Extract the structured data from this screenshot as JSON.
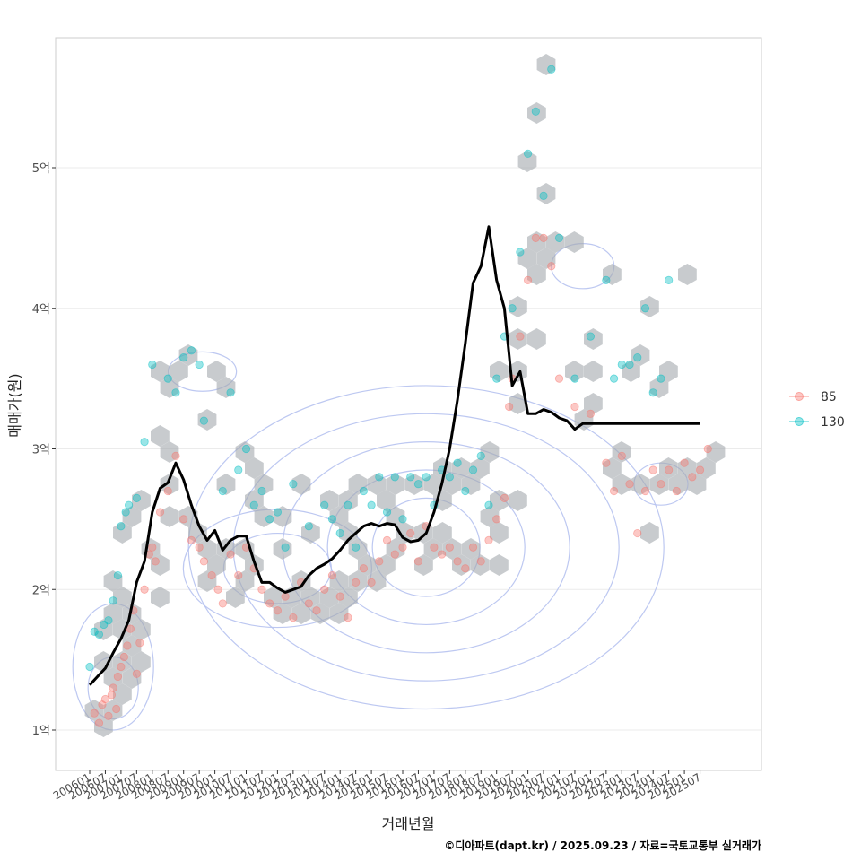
{
  "chart_data": {
    "type": "scatter",
    "xlabel": "거래년월",
    "ylabel": "매매가(원)",
    "caption": "©디아파트(dapt.kr) / 2025.09.23 / 자료=국토교통부 실거래가",
    "x_ticks": [
      "200601",
      "200607",
      "200701",
      "200707",
      "200801",
      "200807",
      "200901",
      "200907",
      "201001",
      "201007",
      "201101",
      "201107",
      "201201",
      "201207",
      "201301",
      "201307",
      "201401",
      "201407",
      "201501",
      "201507",
      "201601",
      "201607",
      "201701",
      "201707",
      "201801",
      "201807",
      "201901",
      "201907",
      "202001",
      "202007",
      "202101",
      "202107",
      "202201",
      "202207",
      "202301",
      "202307",
      "202401",
      "202407",
      "202501",
      "202507"
    ],
    "y_ticks": [
      {
        "label": "1억",
        "value": 1
      },
      {
        "label": "2억",
        "value": 2
      },
      {
        "label": "3억",
        "value": 3
      },
      {
        "label": "4억",
        "value": 4
      },
      {
        "label": "5억",
        "value": 5
      }
    ],
    "ylim": [
      0.7,
      5.9
    ],
    "xlim": [
      -0.4,
      40.5
    ],
    "grid": true,
    "legend_position": "right",
    "legend": [
      {
        "name": "85",
        "color": "#F8766D"
      },
      {
        "name": "130",
        "color": "#00BFC4"
      }
    ],
    "trend_line": {
      "name": "moving average",
      "color": "#000000",
      "x": [
        0,
        0.5,
        1,
        1.5,
        2,
        2.5,
        3,
        3.5,
        4,
        4.5,
        5,
        5.5,
        6,
        6.5,
        7,
        7.5,
        8,
        8.5,
        9,
        9.5,
        10,
        10.5,
        11,
        11.5,
        12,
        12.5,
        13,
        13.5,
        14,
        14.5,
        15,
        15.5,
        16,
        16.5,
        17,
        17.5,
        18,
        18.5,
        19,
        19.5,
        20,
        20.5,
        21,
        21.5,
        22,
        22.5,
        23,
        23.5,
        24,
        24.5,
        25,
        25.5,
        26,
        26.5,
        27,
        27.5,
        28,
        28.5,
        29,
        29.5,
        30,
        30.5,
        31,
        31.5,
        32,
        32.5,
        33,
        33.5,
        34,
        34.5,
        35,
        35.5,
        36,
        36.5,
        37,
        37.5,
        38,
        38.5,
        39,
        39.5,
        40
      ],
      "y": [
        1.32,
        1.38,
        1.44,
        1.55,
        1.65,
        1.78,
        2.05,
        2.2,
        2.55,
        2.72,
        2.76,
        2.9,
        2.78,
        2.6,
        2.45,
        2.35,
        2.42,
        2.28,
        2.35,
        2.38,
        2.38,
        2.2,
        2.05,
        2.05,
        2.01,
        1.98,
        2.0,
        2.02,
        2.1,
        2.15,
        2.18,
        2.22,
        2.28,
        2.35,
        2.4,
        2.45,
        2.47,
        2.45,
        2.47,
        2.46,
        2.37,
        2.34,
        2.35,
        2.4,
        2.55,
        2.75,
        3.0,
        3.35,
        3.75,
        4.18,
        4.3,
        4.58,
        4.2,
        4.0,
        3.45,
        3.55,
        3.25,
        3.25,
        3.28,
        3.26,
        3.22,
        3.2,
        3.14,
        3.18,
        3.18,
        3.18,
        3.18,
        3.18,
        3.18,
        3.18,
        3.18,
        3.18,
        3.18,
        3.18,
        3.18,
        3.18,
        3.18,
        3.18,
        3.18,
        3.18,
        3.18
      ]
    },
    "series": [
      {
        "name": "85",
        "points": [
          [
            0.3,
            1.12
          ],
          [
            0.6,
            1.05
          ],
          [
            0.8,
            1.18
          ],
          [
            1.0,
            1.22
          ],
          [
            1.2,
            1.1
          ],
          [
            1.4,
            1.25
          ],
          [
            1.5,
            1.3
          ],
          [
            1.7,
            1.15
          ],
          [
            1.8,
            1.38
          ],
          [
            2.0,
            1.45
          ],
          [
            2.2,
            1.52
          ],
          [
            2.4,
            1.6
          ],
          [
            2.6,
            1.72
          ],
          [
            2.8,
            1.85
          ],
          [
            3.0,
            1.4
          ],
          [
            3.2,
            1.62
          ],
          [
            3.5,
            2.0
          ],
          [
            3.8,
            2.25
          ],
          [
            4.0,
            2.3
          ],
          [
            4.2,
            2.2
          ],
          [
            4.5,
            2.55
          ],
          [
            5.0,
            2.7
          ],
          [
            5.5,
            2.95
          ],
          [
            6.0,
            2.5
          ],
          [
            6.5,
            2.35
          ],
          [
            7.0,
            2.3
          ],
          [
            7.3,
            2.2
          ],
          [
            7.8,
            2.1
          ],
          [
            8.2,
            2.0
          ],
          [
            8.5,
            1.9
          ],
          [
            9.0,
            2.25
          ],
          [
            9.5,
            2.1
          ],
          [
            10.0,
            2.3
          ],
          [
            10.5,
            2.15
          ],
          [
            11.0,
            2.0
          ],
          [
            11.5,
            1.9
          ],
          [
            12.0,
            1.85
          ],
          [
            12.5,
            1.95
          ],
          [
            13.0,
            1.8
          ],
          [
            13.5,
            2.05
          ],
          [
            14.0,
            1.9
          ],
          [
            14.5,
            1.85
          ],
          [
            15.0,
            2.0
          ],
          [
            15.5,
            2.1
          ],
          [
            16.0,
            1.95
          ],
          [
            16.5,
            1.8
          ],
          [
            17.0,
            2.05
          ],
          [
            17.5,
            2.15
          ],
          [
            18.0,
            2.05
          ],
          [
            18.5,
            2.2
          ],
          [
            19.0,
            2.35
          ],
          [
            19.5,
            2.25
          ],
          [
            20.0,
            2.3
          ],
          [
            20.5,
            2.4
          ],
          [
            21.0,
            2.2
          ],
          [
            21.5,
            2.45
          ],
          [
            22.0,
            2.3
          ],
          [
            22.5,
            2.25
          ],
          [
            23.0,
            2.3
          ],
          [
            23.5,
            2.2
          ],
          [
            24.0,
            2.15
          ],
          [
            24.5,
            2.3
          ],
          [
            25.0,
            2.2
          ],
          [
            25.5,
            2.35
          ],
          [
            26.0,
            2.5
          ],
          [
            26.5,
            2.65
          ],
          [
            26.8,
            3.3
          ],
          [
            27.0,
            3.5
          ],
          [
            27.5,
            3.8
          ],
          [
            28.0,
            4.2
          ],
          [
            28.5,
            4.5
          ],
          [
            29.0,
            4.5
          ],
          [
            29.5,
            4.3
          ],
          [
            30.0,
            3.5
          ],
          [
            31.0,
            3.3
          ],
          [
            32.0,
            3.25
          ],
          [
            33.0,
            2.9
          ],
          [
            33.5,
            2.7
          ],
          [
            34.0,
            2.95
          ],
          [
            34.5,
            2.75
          ],
          [
            35.0,
            2.4
          ],
          [
            35.5,
            2.7
          ],
          [
            36.0,
            2.85
          ],
          [
            36.5,
            2.75
          ],
          [
            37.0,
            2.85
          ],
          [
            37.5,
            2.7
          ],
          [
            38.0,
            2.9
          ],
          [
            38.5,
            2.8
          ],
          [
            39.0,
            2.85
          ],
          [
            39.5,
            3.0
          ]
        ]
      },
      {
        "name": "130",
        "points": [
          [
            0.0,
            1.45
          ],
          [
            0.3,
            1.7
          ],
          [
            0.6,
            1.68
          ],
          [
            0.9,
            1.75
          ],
          [
            1.2,
            1.78
          ],
          [
            1.5,
            1.92
          ],
          [
            1.8,
            2.1
          ],
          [
            2.0,
            2.45
          ],
          [
            2.3,
            2.55
          ],
          [
            2.5,
            2.6
          ],
          [
            3.0,
            2.65
          ],
          [
            3.5,
            3.05
          ],
          [
            4.0,
            3.6
          ],
          [
            5.0,
            3.5
          ],
          [
            5.5,
            3.4
          ],
          [
            6.0,
            3.65
          ],
          [
            6.5,
            3.7
          ],
          [
            7.0,
            3.6
          ],
          [
            7.3,
            3.2
          ],
          [
            8.5,
            2.7
          ],
          [
            9.0,
            3.4
          ],
          [
            9.5,
            2.85
          ],
          [
            10.0,
            3.0
          ],
          [
            10.5,
            2.6
          ],
          [
            11.0,
            2.7
          ],
          [
            11.5,
            2.5
          ],
          [
            12.0,
            2.55
          ],
          [
            12.5,
            2.3
          ],
          [
            13.0,
            2.75
          ],
          [
            14.0,
            2.45
          ],
          [
            15.0,
            2.6
          ],
          [
            15.5,
            2.5
          ],
          [
            16.0,
            2.4
          ],
          [
            16.5,
            2.6
          ],
          [
            17.0,
            2.3
          ],
          [
            17.5,
            2.7
          ],
          [
            18.0,
            2.6
          ],
          [
            18.5,
            2.8
          ],
          [
            19.0,
            2.55
          ],
          [
            19.5,
            2.8
          ],
          [
            20.0,
            2.5
          ],
          [
            20.5,
            2.8
          ],
          [
            21.0,
            2.75
          ],
          [
            21.5,
            2.8
          ],
          [
            22.0,
            2.6
          ],
          [
            22.5,
            2.85
          ],
          [
            23.0,
            2.8
          ],
          [
            23.5,
            2.9
          ],
          [
            24.0,
            2.7
          ],
          [
            24.5,
            2.85
          ],
          [
            25.0,
            2.95
          ],
          [
            25.5,
            2.6
          ],
          [
            26.0,
            3.5
          ],
          [
            26.5,
            3.8
          ],
          [
            27.0,
            4.0
          ],
          [
            27.5,
            4.4
          ],
          [
            28.0,
            5.1
          ],
          [
            28.5,
            5.4
          ],
          [
            29.0,
            4.8
          ],
          [
            29.5,
            5.7
          ],
          [
            30.0,
            4.5
          ],
          [
            31.0,
            3.5
          ],
          [
            32.0,
            3.8
          ],
          [
            33.0,
            4.2
          ],
          [
            33.5,
            3.5
          ],
          [
            34.0,
            3.6
          ],
          [
            34.5,
            3.6
          ],
          [
            35.0,
            3.65
          ],
          [
            35.5,
            4.0
          ],
          [
            36.0,
            3.4
          ],
          [
            36.5,
            3.5
          ],
          [
            37.0,
            4.2
          ]
        ]
      }
    ],
    "hexbin_note": "grey hexagon density cells",
    "density_contours_color": "#b6c2f0"
  }
}
